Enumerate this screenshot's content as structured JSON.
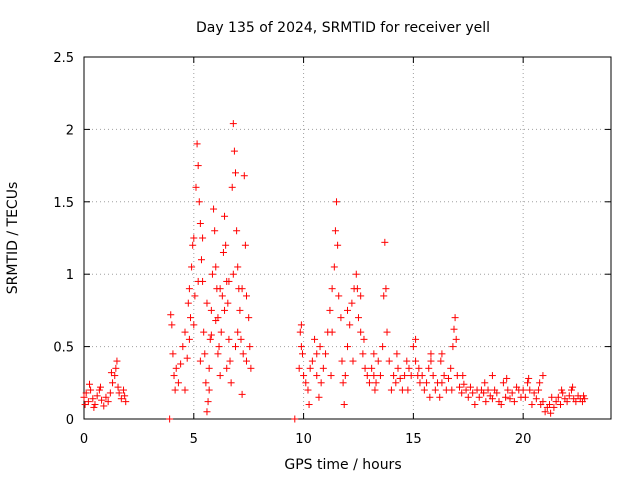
{
  "chart_data": {
    "type": "scatter",
    "title": "Day 135 of 2024, SRMTID for receiver yell",
    "xlabel": "GPS time / hours",
    "ylabel": "SRMTID / TECUs",
    "xlim": [
      0,
      24
    ],
    "ylim": [
      0,
      2.5
    ],
    "x_ticks": [
      0,
      5,
      10,
      15,
      20
    ],
    "x_tick_labels": [
      "0",
      "5",
      "10",
      "15",
      "20"
    ],
    "y_ticks": [
      0,
      0.5,
      1,
      1.5,
      2,
      2.5
    ],
    "y_tick_labels": [
      "0",
      "0.5",
      "1",
      "1.5",
      "2",
      "2.5"
    ],
    "grid": true,
    "marker": "+",
    "color": "#ff0000",
    "series": [
      {
        "name": "SRMTID",
        "points": [
          [
            0.0,
            0.15
          ],
          [
            0.1,
            0.18
          ],
          [
            0.2,
            0.12
          ],
          [
            0.3,
            0.2
          ],
          [
            0.4,
            0.14
          ],
          [
            0.5,
            0.1
          ],
          [
            0.6,
            0.16
          ],
          [
            0.7,
            0.2
          ],
          [
            0.8,
            0.13
          ],
          [
            0.9,
            0.09
          ],
          [
            1.0,
            0.15
          ],
          [
            1.1,
            0.12
          ],
          [
            1.2,
            0.18
          ],
          [
            1.3,
            0.25
          ],
          [
            1.4,
            0.3
          ],
          [
            1.45,
            0.35
          ],
          [
            1.5,
            0.4
          ],
          [
            1.55,
            0.22
          ],
          [
            1.6,
            0.18
          ],
          [
            1.7,
            0.14
          ],
          [
            1.8,
            0.2
          ],
          [
            1.9,
            0.12
          ],
          [
            0.25,
            0.24
          ],
          [
            0.75,
            0.22
          ],
          [
            1.25,
            0.32
          ],
          [
            0.05,
            0.1
          ],
          [
            0.45,
            0.08
          ],
          [
            1.85,
            0.16
          ],
          [
            3.9,
            0.0
          ],
          [
            3.95,
            0.72
          ],
          [
            4.0,
            0.65
          ],
          [
            4.05,
            0.45
          ],
          [
            4.1,
            0.3
          ],
          [
            4.15,
            0.2
          ],
          [
            4.2,
            0.35
          ],
          [
            4.3,
            0.25
          ],
          [
            4.4,
            0.38
          ],
          [
            4.5,
            0.5
          ],
          [
            4.6,
            0.6
          ],
          [
            4.7,
            0.42
          ],
          [
            4.75,
            0.8
          ],
          [
            4.8,
            0.9
          ],
          [
            4.85,
            0.7
          ],
          [
            4.9,
            1.05
          ],
          [
            4.95,
            1.2
          ],
          [
            5.0,
            1.25
          ],
          [
            5.05,
            0.85
          ],
          [
            5.1,
            1.6
          ],
          [
            5.15,
            1.9
          ],
          [
            5.2,
            1.75
          ],
          [
            5.25,
            1.5
          ],
          [
            5.3,
            1.35
          ],
          [
            5.35,
            1.1
          ],
          [
            5.4,
            0.95
          ],
          [
            5.45,
            0.6
          ],
          [
            5.5,
            0.45
          ],
          [
            5.55,
            0.25
          ],
          [
            5.6,
            0.05
          ],
          [
            5.65,
            0.12
          ],
          [
            5.7,
            0.35
          ],
          [
            5.75,
            0.55
          ],
          [
            5.8,
            0.75
          ],
          [
            5.85,
            1.0
          ],
          [
            5.9,
            1.45
          ],
          [
            5.95,
            1.3
          ],
          [
            6.0,
            1.05
          ],
          [
            6.05,
            0.9
          ],
          [
            6.1,
            0.7
          ],
          [
            6.15,
            0.5
          ],
          [
            6.2,
            0.3
          ],
          [
            6.25,
            0.6
          ],
          [
            6.3,
            0.85
          ],
          [
            6.35,
            1.15
          ],
          [
            6.4,
            1.4
          ],
          [
            6.45,
            1.2
          ],
          [
            6.5,
            0.95
          ],
          [
            6.55,
            0.8
          ],
          [
            6.6,
            0.55
          ],
          [
            6.65,
            0.4
          ],
          [
            6.7,
            0.25
          ],
          [
            6.75,
            1.6
          ],
          [
            6.8,
            2.04
          ],
          [
            6.85,
            1.85
          ],
          [
            6.9,
            1.7
          ],
          [
            6.95,
            1.3
          ],
          [
            7.0,
            1.05
          ],
          [
            7.05,
            0.9
          ],
          [
            7.1,
            0.75
          ],
          [
            7.15,
            0.55
          ],
          [
            7.2,
            0.17
          ],
          [
            7.25,
            0.45
          ],
          [
            7.3,
            1.68
          ],
          [
            7.35,
            1.2
          ],
          [
            7.4,
            0.85
          ],
          [
            7.5,
            0.7
          ],
          [
            7.55,
            0.5
          ],
          [
            7.6,
            0.35
          ],
          [
            5.0,
            0.65
          ],
          [
            5.2,
            0.95
          ],
          [
            5.4,
            1.25
          ],
          [
            5.6,
            0.8
          ],
          [
            5.8,
            0.58
          ],
          [
            6.0,
            0.68
          ],
          [
            6.2,
            0.9
          ],
          [
            6.4,
            0.75
          ],
          [
            6.6,
            0.95
          ],
          [
            6.8,
            1.0
          ],
          [
            7.0,
            0.6
          ],
          [
            7.2,
            0.9
          ],
          [
            4.6,
            0.2
          ],
          [
            4.8,
            0.55
          ],
          [
            5.3,
            0.4
          ],
          [
            5.7,
            0.2
          ],
          [
            6.1,
            0.45
          ],
          [
            6.5,
            0.35
          ],
          [
            6.9,
            0.5
          ],
          [
            7.4,
            0.4
          ],
          [
            9.6,
            0.0
          ],
          [
            9.8,
            0.35
          ],
          [
            9.85,
            0.6
          ],
          [
            9.9,
            0.5
          ],
          [
            9.95,
            0.45
          ],
          [
            10.0,
            0.3
          ],
          [
            10.1,
            0.25
          ],
          [
            10.2,
            0.2
          ],
          [
            10.3,
            0.35
          ],
          [
            10.4,
            0.4
          ],
          [
            10.5,
            0.55
          ],
          [
            10.6,
            0.3
          ],
          [
            10.7,
            0.15
          ],
          [
            10.8,
            0.25
          ],
          [
            10.9,
            0.35
          ],
          [
            11.0,
            0.45
          ],
          [
            11.1,
            0.6
          ],
          [
            11.2,
            0.75
          ],
          [
            11.3,
            0.9
          ],
          [
            11.4,
            1.05
          ],
          [
            11.45,
            1.3
          ],
          [
            11.5,
            1.5
          ],
          [
            11.55,
            1.2
          ],
          [
            11.6,
            0.85
          ],
          [
            11.7,
            0.7
          ],
          [
            11.75,
            0.4
          ],
          [
            11.8,
            0.25
          ],
          [
            11.85,
            0.1
          ],
          [
            11.9,
            0.3
          ],
          [
            12.0,
            0.5
          ],
          [
            12.1,
            0.65
          ],
          [
            12.2,
            0.8
          ],
          [
            12.3,
            0.9
          ],
          [
            12.4,
            1.0
          ],
          [
            12.45,
            0.9
          ],
          [
            12.5,
            0.7
          ],
          [
            12.6,
            0.6
          ],
          [
            12.7,
            0.45
          ],
          [
            12.8,
            0.35
          ],
          [
            12.9,
            0.3
          ],
          [
            13.0,
            0.25
          ],
          [
            13.1,
            0.35
          ],
          [
            13.2,
            0.3
          ],
          [
            13.3,
            0.25
          ],
          [
            13.4,
            0.4
          ],
          [
            13.5,
            0.3
          ],
          [
            13.6,
            0.5
          ],
          [
            13.65,
            0.85
          ],
          [
            13.7,
            1.22
          ],
          [
            13.75,
            0.9
          ],
          [
            13.8,
            0.6
          ],
          [
            13.9,
            0.4
          ],
          [
            14.0,
            0.2
          ],
          [
            14.1,
            0.3
          ],
          [
            14.2,
            0.25
          ],
          [
            14.3,
            0.35
          ],
          [
            14.4,
            0.28
          ],
          [
            14.5,
            0.2
          ],
          [
            14.6,
            0.3
          ],
          [
            14.7,
            0.4
          ],
          [
            14.8,
            0.35
          ],
          [
            14.9,
            0.3
          ],
          [
            15.0,
            0.5
          ],
          [
            15.1,
            0.4
          ],
          [
            15.2,
            0.3
          ],
          [
            15.3,
            0.25
          ],
          [
            15.4,
            0.3
          ],
          [
            15.5,
            0.2
          ],
          [
            15.6,
            0.25
          ],
          [
            15.7,
            0.35
          ],
          [
            15.8,
            0.4
          ],
          [
            15.9,
            0.3
          ],
          [
            16.0,
            0.2
          ],
          [
            16.1,
            0.25
          ],
          [
            16.2,
            0.15
          ],
          [
            16.3,
            0.25
          ],
          [
            16.4,
            0.3
          ],
          [
            16.5,
            0.2
          ],
          [
            16.6,
            0.28
          ],
          [
            16.7,
            0.35
          ],
          [
            16.8,
            0.5
          ],
          [
            16.85,
            0.62
          ],
          [
            16.9,
            0.7
          ],
          [
            16.95,
            0.55
          ],
          [
            17.0,
            0.3
          ],
          [
            17.1,
            0.22
          ],
          [
            17.2,
            0.18
          ],
          [
            17.3,
            0.24
          ],
          [
            17.4,
            0.2
          ],
          [
            17.5,
            0.15
          ],
          [
            17.6,
            0.22
          ],
          [
            17.7,
            0.18
          ],
          [
            17.8,
            0.1
          ],
          [
            17.9,
            0.2
          ],
          [
            18.0,
            0.15
          ],
          [
            18.1,
            0.2
          ],
          [
            18.2,
            0.18
          ],
          [
            18.3,
            0.12
          ],
          [
            18.4,
            0.2
          ],
          [
            18.5,
            0.16
          ],
          [
            18.6,
            0.14
          ],
          [
            18.7,
            0.2
          ],
          [
            18.8,
            0.18
          ],
          [
            18.9,
            0.12
          ],
          [
            19.0,
            0.1
          ],
          [
            19.1,
            0.25
          ],
          [
            19.2,
            0.15
          ],
          [
            19.3,
            0.2
          ],
          [
            19.4,
            0.14
          ],
          [
            19.5,
            0.18
          ],
          [
            19.6,
            0.12
          ],
          [
            19.7,
            0.22
          ],
          [
            19.8,
            0.2
          ],
          [
            19.9,
            0.15
          ],
          [
            20.0,
            0.2
          ],
          [
            20.1,
            0.15
          ],
          [
            20.2,
            0.25
          ],
          [
            20.3,
            0.2
          ],
          [
            20.4,
            0.1
          ],
          [
            20.5,
            0.18
          ],
          [
            20.6,
            0.14
          ],
          [
            20.7,
            0.2
          ],
          [
            20.8,
            0.1
          ],
          [
            20.9,
            0.12
          ],
          [
            21.0,
            0.05
          ],
          [
            21.1,
            0.08
          ],
          [
            21.2,
            0.1
          ],
          [
            21.3,
            0.15
          ],
          [
            21.4,
            0.08
          ],
          [
            21.5,
            0.12
          ],
          [
            21.6,
            0.15
          ],
          [
            21.7,
            0.1
          ],
          [
            21.8,
            0.18
          ],
          [
            21.9,
            0.14
          ],
          [
            22.0,
            0.12
          ],
          [
            22.1,
            0.16
          ],
          [
            22.2,
            0.2
          ],
          [
            22.3,
            0.14
          ],
          [
            22.4,
            0.12
          ],
          [
            22.5,
            0.16
          ],
          [
            22.6,
            0.14
          ],
          [
            22.7,
            0.12
          ],
          [
            22.8,
            0.14
          ],
          [
            10.25,
            0.1
          ],
          [
            10.75,
            0.5
          ],
          [
            11.25,
            0.3
          ],
          [
            12.25,
            0.4
          ],
          [
            12.75,
            0.55
          ],
          [
            13.25,
            0.2
          ],
          [
            14.25,
            0.45
          ],
          [
            14.75,
            0.2
          ],
          [
            15.25,
            0.35
          ],
          [
            15.75,
            0.15
          ],
          [
            16.25,
            0.4
          ],
          [
            16.75,
            0.2
          ],
          [
            17.25,
            0.3
          ],
          [
            18.25,
            0.25
          ],
          [
            19.25,
            0.28
          ],
          [
            20.25,
            0.28
          ],
          [
            20.75,
            0.25
          ],
          [
            21.25,
            0.04
          ],
          [
            21.75,
            0.2
          ],
          [
            22.25,
            0.22
          ],
          [
            22.75,
            0.16
          ],
          [
            9.9,
            0.65
          ],
          [
            10.6,
            0.45
          ],
          [
            11.3,
            0.6
          ],
          [
            12.0,
            0.75
          ],
          [
            12.6,
            0.85
          ],
          [
            13.2,
            0.45
          ],
          [
            15.1,
            0.55
          ],
          [
            15.8,
            0.45
          ],
          [
            16.3,
            0.45
          ],
          [
            18.6,
            0.3
          ],
          [
            20.9,
            0.3
          ]
        ]
      }
    ]
  }
}
